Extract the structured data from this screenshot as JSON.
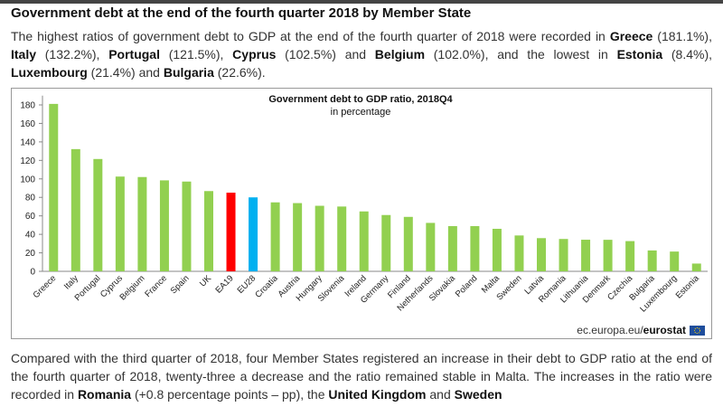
{
  "header": {
    "title": "Government debt at the end of the fourth quarter 2018 by Member State"
  },
  "intro": [
    {
      "text": "The highest ratios of government debt to GDP at the end of the fourth quarter of 2018 were recorded in ",
      "bold": false
    },
    {
      "text": "Greece",
      "bold": true
    },
    {
      "text": " (181.1%), ",
      "bold": false
    },
    {
      "text": "Italy",
      "bold": true
    },
    {
      "text": " (132.2%), ",
      "bold": false
    },
    {
      "text": "Portugal",
      "bold": true
    },
    {
      "text": " (121.5%), ",
      "bold": false
    },
    {
      "text": "Cyprus",
      "bold": true
    },
    {
      "text": " (102.5%) and ",
      "bold": false
    },
    {
      "text": "Belgium",
      "bold": true
    },
    {
      "text": " (102.0%), and the lowest in ",
      "bold": false
    },
    {
      "text": "Estonia",
      "bold": true
    },
    {
      "text": " (8.4%), ",
      "bold": false
    },
    {
      "text": "Luxembourg",
      "bold": true
    },
    {
      "text": " (21.4%) and ",
      "bold": false
    },
    {
      "text": "Bulgaria",
      "bold": true
    },
    {
      "text": " (22.6%).",
      "bold": false
    }
  ],
  "chart_data": {
    "type": "bar",
    "title": "Government debt to GDP ratio, 2018Q4",
    "subtitle": "in percentage",
    "categories": [
      "Greece",
      "Italy",
      "Portugal",
      "Cyprus",
      "Belgium",
      "France",
      "Spain",
      "UK",
      "EA19",
      "EU28",
      "Croatia",
      "Austria",
      "Hungary",
      "Slovenia",
      "Ireland",
      "Germany",
      "Finland",
      "Netherlands",
      "Slovakia",
      "Poland",
      "Malta",
      "Sweden",
      "Latvia",
      "Romania",
      "Lithuania",
      "Denmark",
      "Czechia",
      "Bulgaria",
      "Luxembourg",
      "Estonia"
    ],
    "values": [
      181.1,
      132.2,
      121.5,
      102.5,
      102.0,
      98.4,
      97.1,
      86.8,
      85.1,
      80.0,
      74.6,
      73.8,
      70.9,
      70.1,
      64.8,
      60.9,
      58.9,
      52.4,
      48.9,
      48.9,
      46.0,
      38.8,
      35.9,
      35.0,
      34.2,
      34.1,
      32.7,
      22.6,
      21.4,
      8.4
    ],
    "colors": [
      "#92d050",
      "#92d050",
      "#92d050",
      "#92d050",
      "#92d050",
      "#92d050",
      "#92d050",
      "#92d050",
      "#ff0000",
      "#00b0f0",
      "#92d050",
      "#92d050",
      "#92d050",
      "#92d050",
      "#92d050",
      "#92d050",
      "#92d050",
      "#92d050",
      "#92d050",
      "#92d050",
      "#92d050",
      "#92d050",
      "#92d050",
      "#92d050",
      "#92d050",
      "#92d050",
      "#92d050",
      "#92d050",
      "#92d050",
      "#92d050"
    ],
    "ylim": [
      0,
      190
    ],
    "yticks": [
      0,
      20,
      40,
      60,
      80,
      100,
      120,
      140,
      160,
      180
    ],
    "grid": false,
    "source": "ec.europa.eu/",
    "source_brand": "eurostat"
  },
  "outro": [
    {
      "text": "Compared with the third quarter of 2018, four Member States registered an increase in their debt to GDP ratio at the end of the fourth quarter of 2018, twenty-three a decrease and the ratio remained stable in Malta. The increases in the ratio were recorded in ",
      "bold": false
    },
    {
      "text": "Romania",
      "bold": true
    },
    {
      "text": " (+0.8 percentage points – pp), the ",
      "bold": false
    },
    {
      "text": "United Kingdom",
      "bold": true
    },
    {
      "text": " and ",
      "bold": false
    },
    {
      "text": "Sweden",
      "bold": true
    }
  ]
}
